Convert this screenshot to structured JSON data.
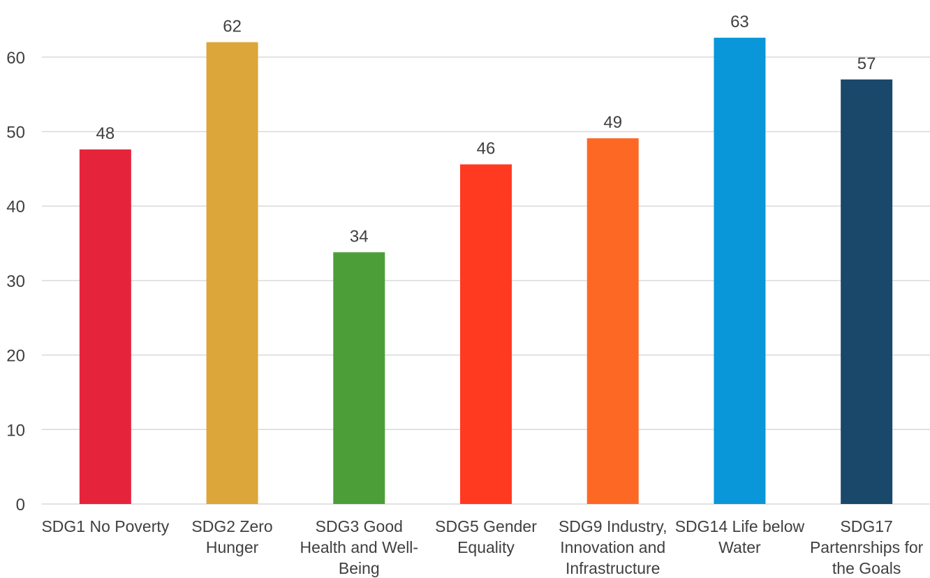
{
  "chart_data": {
    "type": "bar",
    "title": "",
    "xlabel": "",
    "ylabel": "",
    "ylim": [
      0,
      64
    ],
    "yticks": [
      0,
      10,
      20,
      30,
      40,
      50,
      60
    ],
    "grid": true,
    "categories": [
      [
        "SDG1 No Poverty"
      ],
      [
        "SDG2 Zero",
        "Hunger"
      ],
      [
        "SDG3 Good",
        "Health and Well-",
        "Being"
      ],
      [
        "SDG5 Gender",
        "Equality"
      ],
      [
        "SDG9 Industry,",
        "Innovation and",
        "Infrastructure"
      ],
      [
        "SDG14 Life below",
        "Water"
      ],
      [
        "SDG17",
        "Partenrships for",
        "the Goals"
      ]
    ],
    "values": [
      47.6,
      62,
      33.8,
      45.6,
      49.1,
      62.6,
      57
    ],
    "data_labels": [
      "48",
      "62",
      "34",
      "46",
      "49",
      "63",
      "57"
    ],
    "colors": [
      "#e5243b",
      "#dda63a",
      "#4c9f38",
      "#ff3a21",
      "#fd6925",
      "#0a97d9",
      "#19486a"
    ]
  }
}
